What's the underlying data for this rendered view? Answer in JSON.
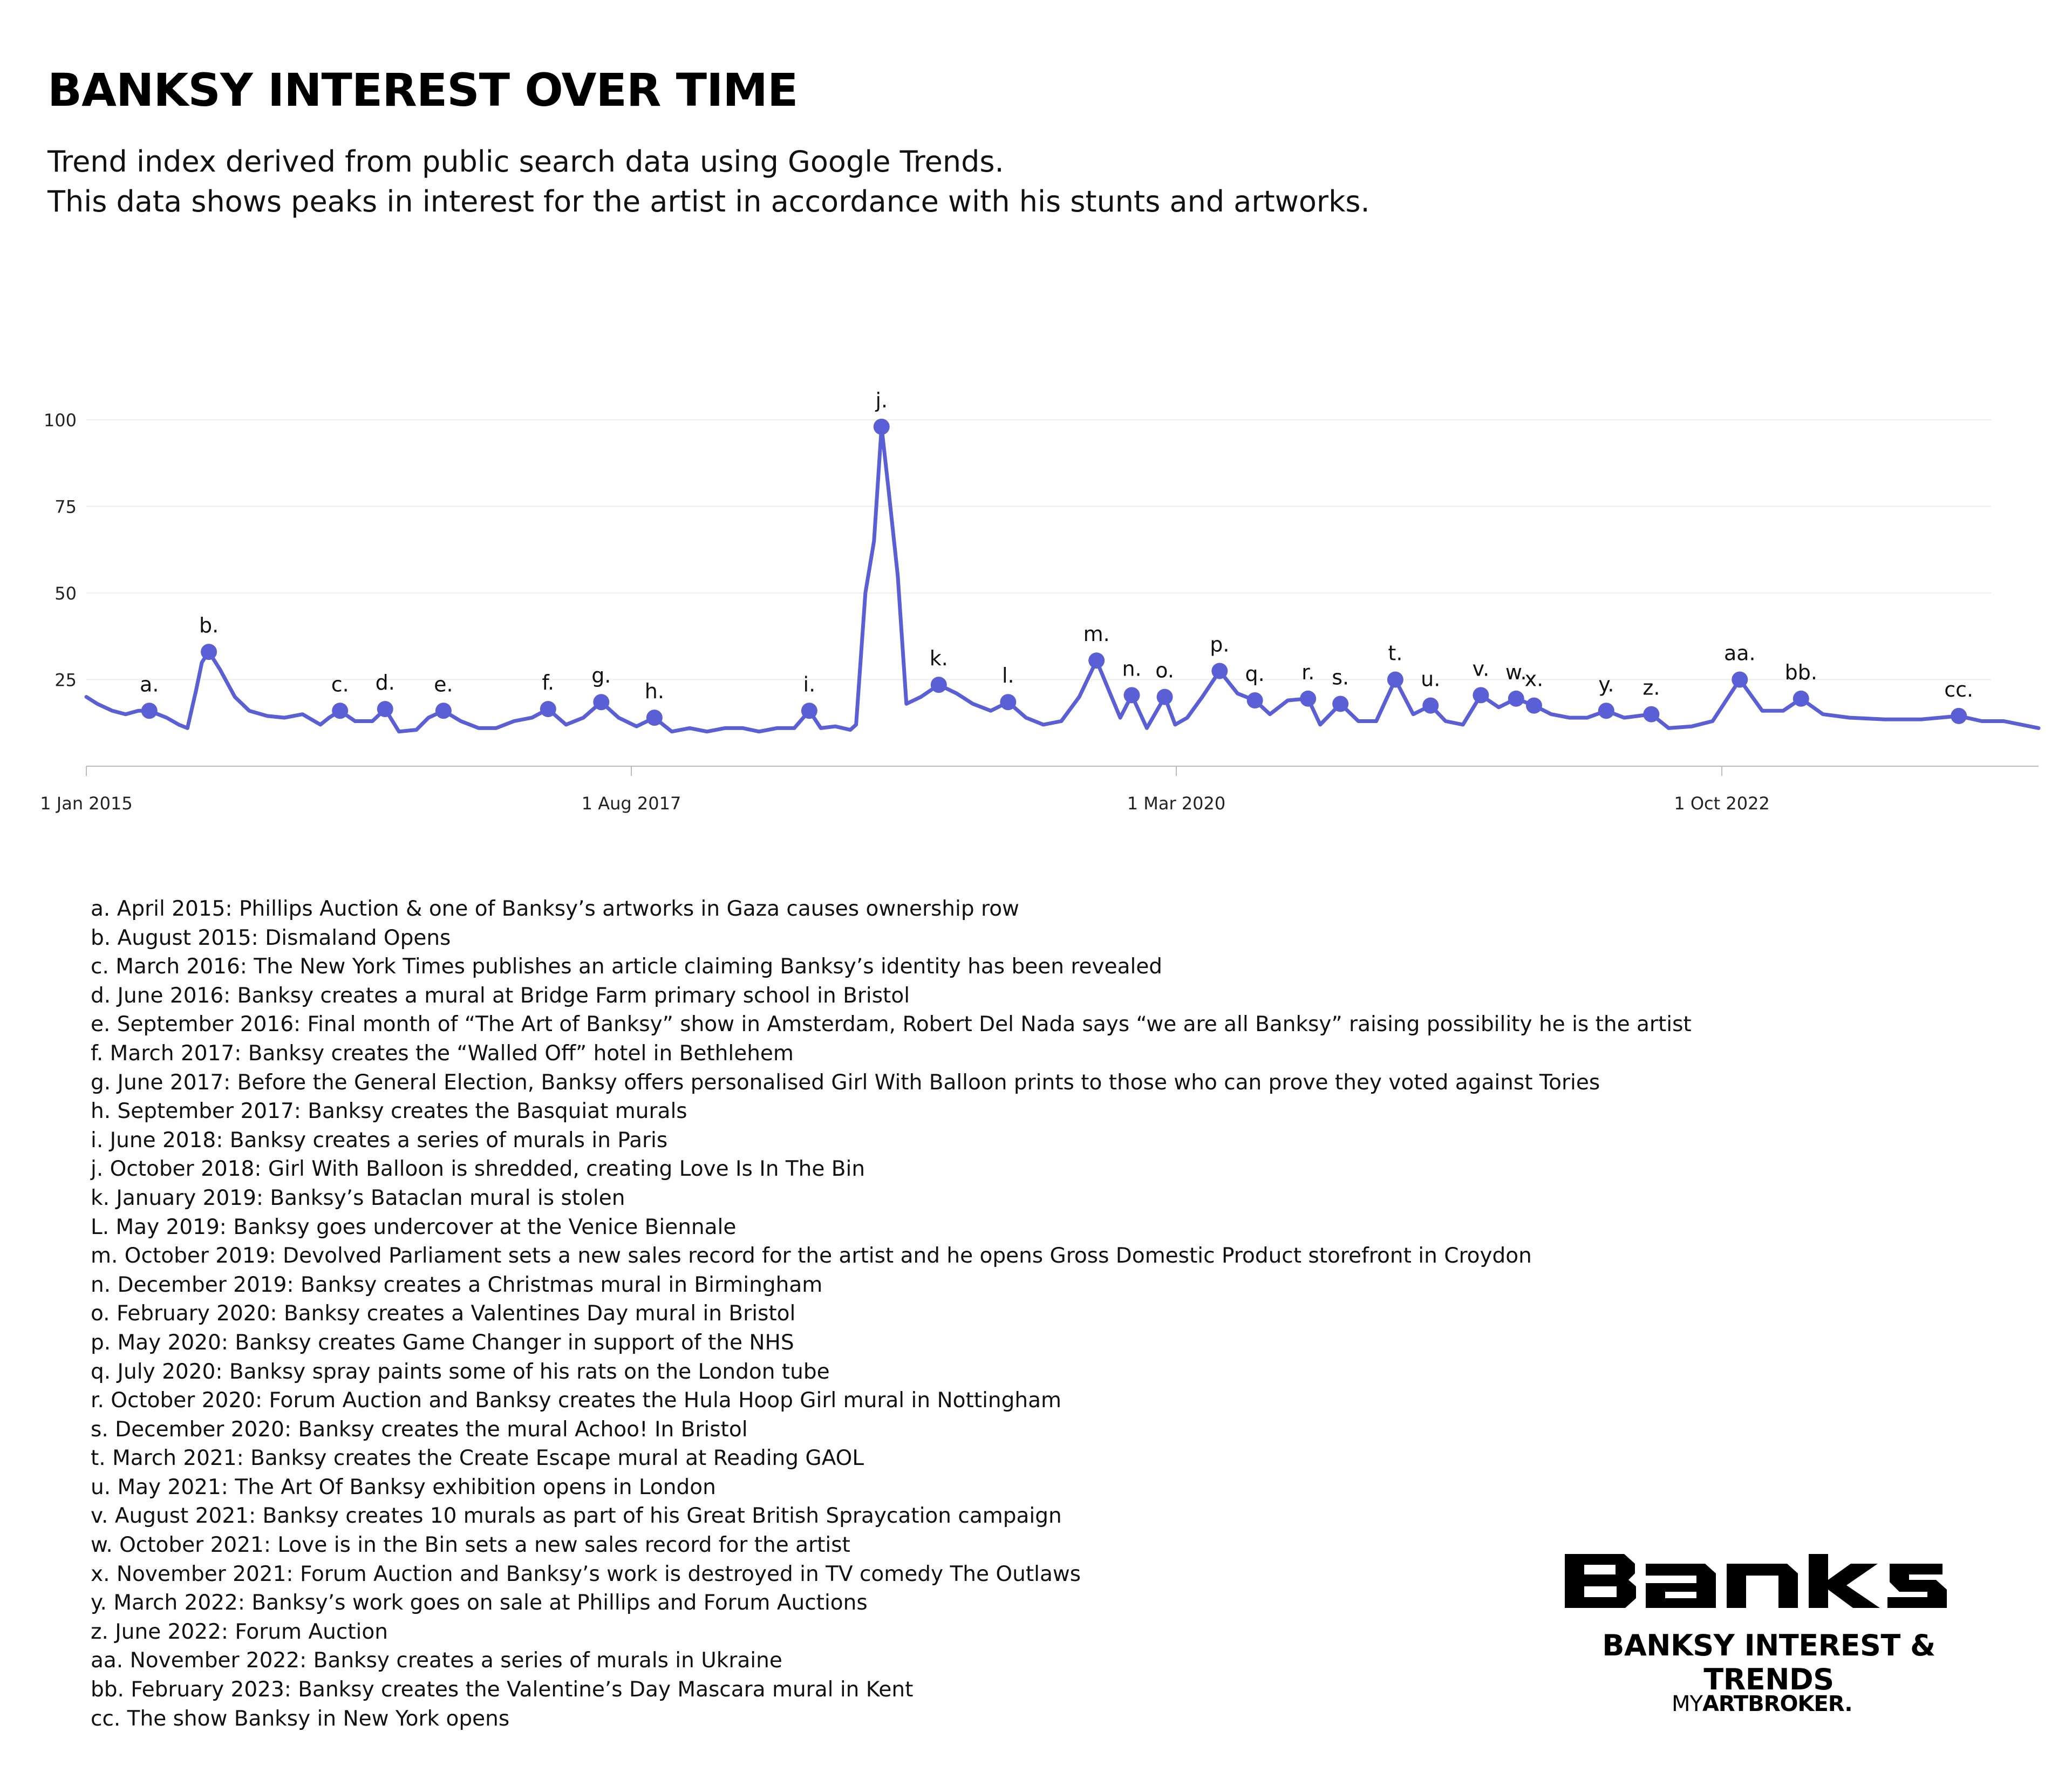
{
  "header": {
    "title": "BANKSY INTEREST OVER TIME",
    "subtitle_1": "Trend index derived from public search data using Google Trends.",
    "subtitle_2": "This data shows peaks in interest for the artist in accordance with his stunts and artworks."
  },
  "colors": {
    "line": "#5b5fd6",
    "marker": "#5b5fd6",
    "grid": "#eeeeee",
    "axis": "#bbbbbb",
    "text": "#111111"
  },
  "chart_data": {
    "type": "line",
    "x_axis": {
      "type": "date",
      "range": [
        "2015-01-01",
        "2024-04-01"
      ],
      "ticks": [
        {
          "value": "2015-01-01",
          "label": "1 Jan 2015"
        },
        {
          "value": "2017-08-01",
          "label": "1 Aug 2017"
        },
        {
          "value": "2020-03-01",
          "label": "1 Mar 2020"
        },
        {
          "value": "2022-10-01",
          "label": "1 Oct 2022"
        }
      ]
    },
    "y_axis": {
      "range": [
        0,
        100
      ],
      "ticks": [
        25,
        50,
        75,
        100
      ]
    },
    "grid": {
      "horizontal": true,
      "vertical": false
    },
    "legend": "none",
    "series": [
      {
        "points": [
          [
            "2015-01-01",
            20
          ],
          [
            "2015-01-20",
            18
          ],
          [
            "2015-02-15",
            16
          ],
          [
            "2015-03-10",
            15
          ],
          [
            "2015-04-01",
            16
          ],
          [
            "2015-04-20",
            16
          ],
          [
            "2015-05-20",
            14
          ],
          [
            "2015-06-10",
            12
          ],
          [
            "2015-06-25",
            11
          ],
          [
            "2015-07-10",
            22
          ],
          [
            "2015-07-20",
            30
          ],
          [
            "2015-08-01",
            33
          ],
          [
            "2015-08-20",
            28
          ],
          [
            "2015-09-15",
            20
          ],
          [
            "2015-10-10",
            16
          ],
          [
            "2015-11-10",
            14.5
          ],
          [
            "2015-12-10",
            14
          ],
          [
            "2016-01-10",
            15
          ],
          [
            "2016-02-10",
            12
          ],
          [
            "2016-02-25",
            14
          ],
          [
            "2016-03-15",
            16
          ],
          [
            "2016-04-10",
            13
          ],
          [
            "2016-05-10",
            13
          ],
          [
            "2016-06-01",
            16.5
          ],
          [
            "2016-06-25",
            10
          ],
          [
            "2016-07-25",
            10.5
          ],
          [
            "2016-08-15",
            14
          ],
          [
            "2016-09-10",
            16
          ],
          [
            "2016-10-10",
            13
          ],
          [
            "2016-11-10",
            11
          ],
          [
            "2016-12-10",
            11
          ],
          [
            "2017-01-10",
            13
          ],
          [
            "2017-02-10",
            14
          ],
          [
            "2017-03-10",
            16.5
          ],
          [
            "2017-04-10",
            12
          ],
          [
            "2017-05-10",
            14
          ],
          [
            "2017-06-10",
            18.5
          ],
          [
            "2017-07-10",
            14
          ],
          [
            "2017-08-10",
            11.5
          ],
          [
            "2017-09-10",
            14
          ],
          [
            "2017-10-10",
            10
          ],
          [
            "2017-11-10",
            11
          ],
          [
            "2017-12-10",
            10
          ],
          [
            "2018-01-10",
            11
          ],
          [
            "2018-02-10",
            11
          ],
          [
            "2018-03-10",
            10
          ],
          [
            "2018-04-10",
            11
          ],
          [
            "2018-05-10",
            11
          ],
          [
            "2018-06-05",
            16
          ],
          [
            "2018-06-25",
            11
          ],
          [
            "2018-07-20",
            11.5
          ],
          [
            "2018-08-15",
            10.5
          ],
          [
            "2018-08-25",
            12
          ],
          [
            "2018-09-10",
            50
          ],
          [
            "2018-09-25",
            65
          ],
          [
            "2018-10-08",
            98
          ],
          [
            "2018-10-20",
            80
          ],
          [
            "2018-11-05",
            55
          ],
          [
            "2018-11-20",
            18
          ],
          [
            "2018-12-15",
            20
          ],
          [
            "2019-01-15",
            23.5
          ],
          [
            "2019-02-15",
            21
          ],
          [
            "2019-03-15",
            18
          ],
          [
            "2019-04-15",
            16
          ],
          [
            "2019-05-15",
            18.5
          ],
          [
            "2019-06-15",
            14
          ],
          [
            "2019-07-15",
            12
          ],
          [
            "2019-08-15",
            13
          ],
          [
            "2019-09-15",
            20
          ],
          [
            "2019-10-15",
            30.5
          ],
          [
            "2019-11-10",
            20
          ],
          [
            "2019-11-25",
            14
          ],
          [
            "2019-12-15",
            20.5
          ],
          [
            "2020-01-10",
            11
          ],
          [
            "2020-02-10",
            20
          ],
          [
            "2020-02-28",
            12
          ],
          [
            "2020-03-20",
            14
          ],
          [
            "2020-04-15",
            20
          ],
          [
            "2020-05-15",
            27.5
          ],
          [
            "2020-06-15",
            21
          ],
          [
            "2020-07-15",
            19
          ],
          [
            "2020-08-10",
            15
          ],
          [
            "2020-09-10",
            19
          ],
          [
            "2020-10-15",
            19.5
          ],
          [
            "2020-11-05",
            12
          ],
          [
            "2020-12-10",
            18
          ],
          [
            "2021-01-10",
            13
          ],
          [
            "2021-02-10",
            13
          ],
          [
            "2021-03-15",
            25
          ],
          [
            "2021-04-15",
            15
          ],
          [
            "2021-05-15",
            17.5
          ],
          [
            "2021-06-10",
            13
          ],
          [
            "2021-07-10",
            12
          ],
          [
            "2021-08-10",
            20.5
          ],
          [
            "2021-09-10",
            17
          ],
          [
            "2021-10-10",
            19.5
          ],
          [
            "2021-11-10",
            17.5
          ],
          [
            "2021-12-10",
            15
          ],
          [
            "2022-01-10",
            14
          ],
          [
            "2022-02-10",
            14
          ],
          [
            "2022-03-15",
            16
          ],
          [
            "2022-04-15",
            14
          ],
          [
            "2022-06-01",
            15
          ],
          [
            "2022-07-01",
            11
          ],
          [
            "2022-08-10",
            11.5
          ],
          [
            "2022-09-15",
            13
          ],
          [
            "2022-11-01",
            25
          ],
          [
            "2022-12-10",
            16
          ],
          [
            "2023-01-15",
            16
          ],
          [
            "2023-02-15",
            19.5
          ],
          [
            "2023-03-25",
            15
          ],
          [
            "2023-05-10",
            14
          ],
          [
            "2023-07-10",
            13.5
          ],
          [
            "2023-09-10",
            13.5
          ],
          [
            "2023-11-15",
            14.5
          ],
          [
            "2023-12-25",
            13
          ],
          [
            "2024-02-01",
            13
          ],
          [
            "2024-04-01",
            11
          ]
        ]
      }
    ],
    "annotations": [
      {
        "label": "a.",
        "x": "2015-04-20",
        "y": 16
      },
      {
        "label": "b.",
        "x": "2015-08-01",
        "y": 33
      },
      {
        "label": "c.",
        "x": "2016-03-15",
        "y": 16
      },
      {
        "label": "d.",
        "x": "2016-06-01",
        "y": 16.5
      },
      {
        "label": "e.",
        "x": "2016-09-10",
        "y": 16
      },
      {
        "label": "f.",
        "x": "2017-03-10",
        "y": 16.5
      },
      {
        "label": "g.",
        "x": "2017-06-10",
        "y": 18.5
      },
      {
        "label": "h.",
        "x": "2017-09-10",
        "y": 14
      },
      {
        "label": "i.",
        "x": "2018-06-05",
        "y": 16
      },
      {
        "label": "j.",
        "x": "2018-10-08",
        "y": 98
      },
      {
        "label": "k.",
        "x": "2019-01-15",
        "y": 23.5
      },
      {
        "label": "l.",
        "x": "2019-05-15",
        "y": 18.5
      },
      {
        "label": "m.",
        "x": "2019-10-15",
        "y": 30.5
      },
      {
        "label": "n.",
        "x": "2019-12-15",
        "y": 20.5
      },
      {
        "label": "o.",
        "x": "2020-02-10",
        "y": 20
      },
      {
        "label": "p.",
        "x": "2020-05-15",
        "y": 27.5
      },
      {
        "label": "q.",
        "x": "2020-07-15",
        "y": 19
      },
      {
        "label": "r.",
        "x": "2020-10-15",
        "y": 19.5
      },
      {
        "label": "s.",
        "x": "2020-12-10",
        "y": 18
      },
      {
        "label": "t.",
        "x": "2021-03-15",
        "y": 25
      },
      {
        "label": "u.",
        "x": "2021-05-15",
        "y": 17.5
      },
      {
        "label": "v.",
        "x": "2021-08-10",
        "y": 20.5
      },
      {
        "label": "w.",
        "x": "2021-10-10",
        "y": 19.5
      },
      {
        "label": "x.",
        "x": "2021-11-10",
        "y": 17.5
      },
      {
        "label": "y.",
        "x": "2022-03-15",
        "y": 16
      },
      {
        "label": "z.",
        "x": "2022-06-01",
        "y": 15
      },
      {
        "label": "aa.",
        "x": "2022-11-01",
        "y": 25
      },
      {
        "label": "bb.",
        "x": "2023-02-15",
        "y": 19.5
      },
      {
        "label": "cc.",
        "x": "2023-11-15",
        "y": 14.5
      }
    ]
  },
  "notes": [
    "a. April 2015: Phillips Auction & one of Banksy’s artworks in Gaza causes ownership row",
    "b. August 2015: Dismaland Opens",
    "c. March 2016: The New York Times publishes an article claiming Banksy’s identity has been revealed",
    "d. June 2016: Banksy creates a mural at Bridge Farm primary school in Bristol",
    "e. September 2016: Final month of “The Art of Banksy” show in Amsterdam, Robert Del Nada says “we are all Banksy” raising possibility he is the artist",
    "f. March 2017: Banksy creates the “Walled Off” hotel in Bethlehem",
    "g. June 2017: Before the General Election, Banksy offers personalised Girl With Balloon prints to those who can prove they voted against Tories",
    "h. September 2017: Banksy creates the Basquiat murals",
    "i. June 2018: Banksy creates a series of murals in Paris",
    "j. October 2018: Girl With Balloon is shredded, creating Love Is In The Bin",
    "k. January 2019: Banksy’s Bataclan mural is stolen",
    "L. May 2019: Banksy goes undercover at the Venice Biennale",
    "m. October 2019: Devolved Parliament sets a new sales record for the artist and he opens Gross Domestic Product storefront in Croydon",
    "n. December 2019: Banksy creates a Christmas mural in Birmingham",
    "o. February 2020: Banksy creates a Valentines Day mural in Bristol",
    "p. May 2020: Banksy creates Game Changer in support of the NHS",
    "q. July 2020: Banksy spray paints some of his rats on the London tube",
    "r. October 2020: Forum Auction and Banksy creates the Hula Hoop Girl mural in Nottingham",
    "s. December 2020: Banksy creates the mural Achoo! In Bristol",
    "t. March 2021: Banksy creates the Create Escape mural at Reading GAOL",
    "u. May 2021: The Art Of Banksy exhibition opens in London",
    "v. August 2021: Banksy creates 10 murals as part of his Great British Spraycation campaign",
    "w. October 2021: Love is in the Bin sets a new sales record for the artist",
    "x. November 2021: Forum Auction and Banksy’s work is destroyed in TV comedy The Outlaws",
    "y. March 2022: Banksy’s work goes on sale at Phillips and Forum Auctions",
    "z. June 2022: Forum Auction",
    "aa. November 2022: Banksy creates a series of murals in Ukraine",
    "bb. February 2023: Banksy creates the Valentine’s Day Mascara mural in Kent",
    "cc. The show Banksy in New York opens"
  ],
  "brand": {
    "wordmark": "Banksy",
    "caption": "BANKSY INTEREST & TRENDS",
    "logo_prefix": "MY",
    "logo_suffix": "ARTBROKER."
  }
}
